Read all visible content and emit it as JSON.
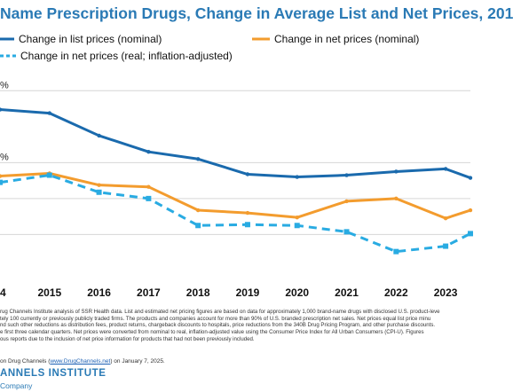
{
  "title": "Name Prescription Drugs, Change in Average List and Net Prices, 201",
  "chart_data": {
    "type": "line",
    "x": [
      "4",
      "2015",
      "2016",
      "2017",
      "2018",
      "2019",
      "2020",
      "2021",
      "2022",
      "2023",
      ""
    ],
    "x_numeric": [
      2014,
      2015,
      2016,
      2017,
      2018,
      2019,
      2020,
      2021,
      2022,
      2023,
      2023.5
    ],
    "xlim": [
      2014,
      2023.5
    ],
    "ylim": [
      -8.5,
      14
    ],
    "y_ticks": [
      {
        "value": 12,
        "label": "%"
      },
      {
        "value": 4,
        "label": "%"
      },
      {
        "value": 0,
        "label": ""
      },
      {
        "value": -4,
        "label": ""
      }
    ],
    "grid": true,
    "legend_position": "top",
    "series": [
      {
        "name": "Change in list prices (nominal)",
        "color": "#1a6aad",
        "style": "solid",
        "values": [
          9.9,
          9.5,
          7.0,
          5.2,
          4.4,
          2.7,
          2.4,
          2.6,
          3.0,
          3.3,
          2.3
        ]
      },
      {
        "name": "Change in net prices (nominal)",
        "color": "#f39c2e",
        "style": "solid",
        "values": [
          2.5,
          2.8,
          1.5,
          1.3,
          -1.3,
          -1.6,
          -2.1,
          -0.3,
          0.0,
          -2.2,
          -1.3
        ]
      },
      {
        "name": "Change in net prices (real; inflation-adjusted)",
        "color": "#29abe2",
        "style": "dashed",
        "values": [
          1.8,
          2.6,
          0.7,
          0.0,
          -3.0,
          -2.9,
          -3.0,
          -3.7,
          -5.9,
          -5.3,
          -3.9
        ]
      }
    ]
  },
  "notes": [
    "rug Channels Institute analysis of SSR Health data. List and estimated net pricing figures are based on data for approximately 1,000 brand-name drugs with disclosed U.S. product-leve",
    "tely 100 currently or previously publicly traded firms. The products and companies account for more than 90% of U.S. branded prescription net sales. Net prices equal list price minu",
    "nd such other reductions as distribution fees, product returns, chargeback discounts to hospitals, price reductions from the 340B Drug Pricing Program, and other purchase discounts.",
    "e first three calendar quarters. Net prices were converted from nominal to real, inflation-adjusted value using the Consumer Price Index for All Urban Consumers (CPI-U). Figures",
    "ous reports due to the inclusion of net price information for products that had not been previously included."
  ],
  "source": {
    "prefix": "on Drug Channels (",
    "link": "www.DrugChannels.net",
    "suffix": ") on January 7, 2025."
  },
  "brand": {
    "line1": "ANNELS INSTITUTE",
    "line2": "Company"
  }
}
